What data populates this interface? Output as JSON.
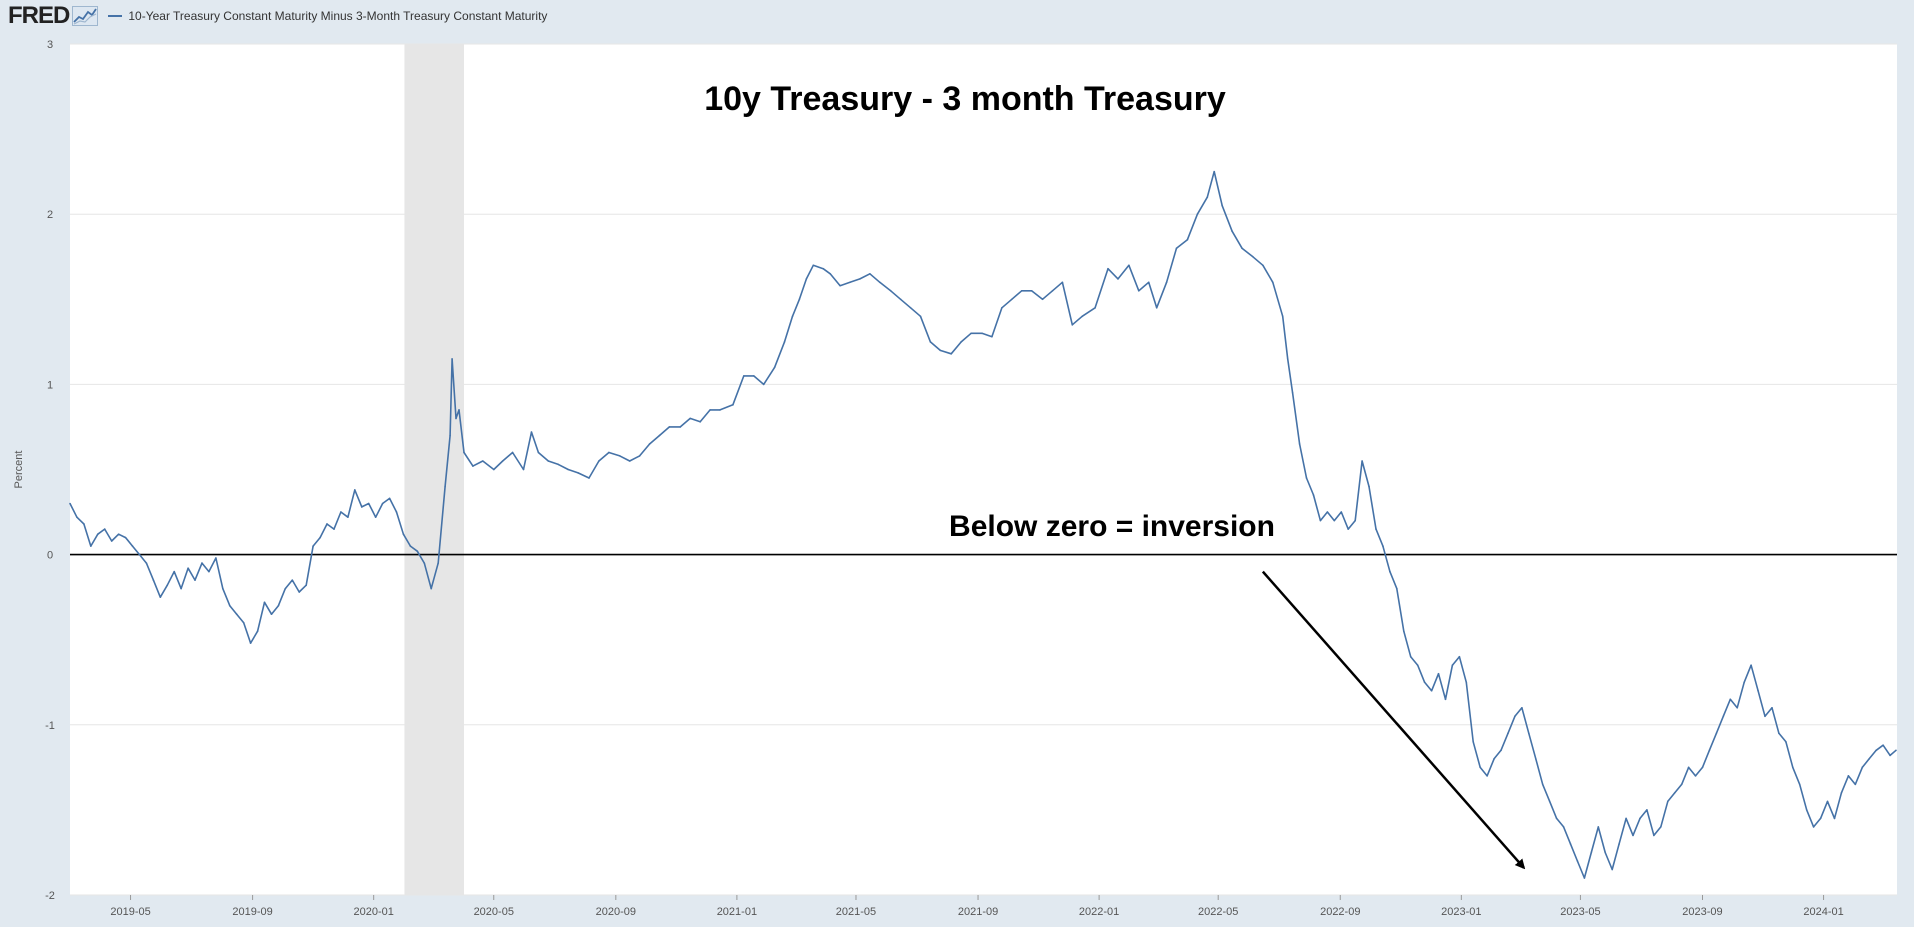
{
  "header": {
    "logo_text": "FRED",
    "logo_icon": "fred-graph-icon",
    "legend_series_label": "10-Year Treasury Constant Maturity Minus 3-Month Treasury Constant Maturity"
  },
  "colors": {
    "series": "#4572a7",
    "page_background": "#e1e9f0",
    "plot_background": "#ffffff",
    "recession_shade": "#e6e6e6",
    "gridline": "#e6e6e6",
    "zero_line": "#000000",
    "annotation": "#000000"
  },
  "chart_data": {
    "type": "line",
    "title": "10y Treasury - 3 month Treasury",
    "ylabel": "Percent",
    "xlabel": "",
    "ylim": [
      -2,
      3
    ],
    "xlim": [
      "2019-03-01",
      "2024-03-15"
    ],
    "y_ticks": [
      3,
      2,
      1,
      0,
      -1,
      -2
    ],
    "y_tick_labels": [
      "3",
      "2",
      "1",
      "0",
      "-1",
      "-2"
    ],
    "x_ticks": [
      "2019-05-01",
      "2019-09-01",
      "2020-01-01",
      "2020-05-01",
      "2020-09-01",
      "2021-01-01",
      "2021-05-01",
      "2021-09-01",
      "2022-01-01",
      "2022-05-01",
      "2022-09-01",
      "2023-01-01",
      "2023-05-01",
      "2023-09-01",
      "2024-01-01"
    ],
    "x_tick_labels": [
      "2019-05",
      "2019-09",
      "2020-01",
      "2020-05",
      "2020-09",
      "2021-01",
      "2021-05",
      "2021-09",
      "2022-01",
      "2022-05",
      "2022-09",
      "2023-01",
      "2023-05",
      "2023-09",
      "2024-01"
    ],
    "grid": true,
    "recession": {
      "start": "2020-02-01",
      "end": "2020-04-01"
    },
    "reference_line": {
      "y": 0
    },
    "annotations": {
      "inversion_label": "Below zero = inversion",
      "arrow": {
        "from": {
          "x": "2022-06-15",
          "y": -0.1
        },
        "to": {
          "x": "2023-03-05",
          "y": -1.84
        }
      }
    },
    "series": [
      {
        "name": "10-Year Treasury Constant Maturity Minus 3-Month Treasury Constant Maturity",
        "points": [
          [
            "2019-03-01",
            0.3
          ],
          [
            "2019-03-08",
            0.22
          ],
          [
            "2019-03-15",
            0.18
          ],
          [
            "2019-03-22",
            0.05
          ],
          [
            "2019-03-29",
            0.12
          ],
          [
            "2019-04-05",
            0.15
          ],
          [
            "2019-04-12",
            0.08
          ],
          [
            "2019-04-19",
            0.12
          ],
          [
            "2019-04-26",
            0.1
          ],
          [
            "2019-05-03",
            0.05
          ],
          [
            "2019-05-10",
            0.0
          ],
          [
            "2019-05-17",
            -0.05
          ],
          [
            "2019-05-24",
            -0.15
          ],
          [
            "2019-05-31",
            -0.25
          ],
          [
            "2019-06-07",
            -0.18
          ],
          [
            "2019-06-14",
            -0.1
          ],
          [
            "2019-06-21",
            -0.2
          ],
          [
            "2019-06-28",
            -0.08
          ],
          [
            "2019-07-05",
            -0.15
          ],
          [
            "2019-07-12",
            -0.05
          ],
          [
            "2019-07-19",
            -0.1
          ],
          [
            "2019-07-26",
            -0.02
          ],
          [
            "2019-08-02",
            -0.2
          ],
          [
            "2019-08-09",
            -0.3
          ],
          [
            "2019-08-16",
            -0.35
          ],
          [
            "2019-08-23",
            -0.4
          ],
          [
            "2019-08-30",
            -0.52
          ],
          [
            "2019-09-06",
            -0.45
          ],
          [
            "2019-09-13",
            -0.28
          ],
          [
            "2019-09-20",
            -0.35
          ],
          [
            "2019-09-27",
            -0.3
          ],
          [
            "2019-10-04",
            -0.2
          ],
          [
            "2019-10-11",
            -0.15
          ],
          [
            "2019-10-18",
            -0.22
          ],
          [
            "2019-10-25",
            -0.18
          ],
          [
            "2019-11-01",
            0.05
          ],
          [
            "2019-11-08",
            0.1
          ],
          [
            "2019-11-15",
            0.18
          ],
          [
            "2019-11-22",
            0.15
          ],
          [
            "2019-11-29",
            0.25
          ],
          [
            "2019-12-06",
            0.22
          ],
          [
            "2019-12-13",
            0.38
          ],
          [
            "2019-12-20",
            0.28
          ],
          [
            "2019-12-27",
            0.3
          ],
          [
            "2020-01-03",
            0.22
          ],
          [
            "2020-01-10",
            0.3
          ],
          [
            "2020-01-17",
            0.33
          ],
          [
            "2020-01-24",
            0.25
          ],
          [
            "2020-01-31",
            0.12
          ],
          [
            "2020-02-07",
            0.05
          ],
          [
            "2020-02-14",
            0.02
          ],
          [
            "2020-02-21",
            -0.05
          ],
          [
            "2020-02-28",
            -0.2
          ],
          [
            "2020-03-06",
            -0.05
          ],
          [
            "2020-03-13",
            0.4
          ],
          [
            "2020-03-18",
            0.7
          ],
          [
            "2020-03-20",
            1.15
          ],
          [
            "2020-03-24",
            0.8
          ],
          [
            "2020-03-27",
            0.85
          ],
          [
            "2020-04-01",
            0.6
          ],
          [
            "2020-04-10",
            0.52
          ],
          [
            "2020-04-20",
            0.55
          ],
          [
            "2020-05-01",
            0.5
          ],
          [
            "2020-05-10",
            0.55
          ],
          [
            "2020-05-20",
            0.6
          ],
          [
            "2020-05-31",
            0.5
          ],
          [
            "2020-06-08",
            0.72
          ],
          [
            "2020-06-15",
            0.6
          ],
          [
            "2020-06-25",
            0.55
          ],
          [
            "2020-07-05",
            0.53
          ],
          [
            "2020-07-15",
            0.5
          ],
          [
            "2020-07-25",
            0.48
          ],
          [
            "2020-08-05",
            0.45
          ],
          [
            "2020-08-15",
            0.55
          ],
          [
            "2020-08-25",
            0.6
          ],
          [
            "2020-09-05",
            0.58
          ],
          [
            "2020-09-15",
            0.55
          ],
          [
            "2020-09-25",
            0.58
          ],
          [
            "2020-10-05",
            0.65
          ],
          [
            "2020-10-15",
            0.7
          ],
          [
            "2020-10-25",
            0.75
          ],
          [
            "2020-11-05",
            0.75
          ],
          [
            "2020-11-15",
            0.8
          ],
          [
            "2020-11-25",
            0.78
          ],
          [
            "2020-12-05",
            0.85
          ],
          [
            "2020-12-15",
            0.85
          ],
          [
            "2020-12-28",
            0.88
          ],
          [
            "2021-01-08",
            1.05
          ],
          [
            "2021-01-18",
            1.05
          ],
          [
            "2021-01-28",
            1.0
          ],
          [
            "2021-02-08",
            1.1
          ],
          [
            "2021-02-18",
            1.25
          ],
          [
            "2021-02-26",
            1.4
          ],
          [
            "2021-03-05",
            1.5
          ],
          [
            "2021-03-12",
            1.62
          ],
          [
            "2021-03-19",
            1.7
          ],
          [
            "2021-03-29",
            1.68
          ],
          [
            "2021-04-05",
            1.65
          ],
          [
            "2021-04-15",
            1.58
          ],
          [
            "2021-04-25",
            1.6
          ],
          [
            "2021-05-05",
            1.62
          ],
          [
            "2021-05-15",
            1.65
          ],
          [
            "2021-05-25",
            1.6
          ],
          [
            "2021-06-05",
            1.55
          ],
          [
            "2021-06-15",
            1.5
          ],
          [
            "2021-06-25",
            1.45
          ],
          [
            "2021-07-05",
            1.4
          ],
          [
            "2021-07-15",
            1.25
          ],
          [
            "2021-07-25",
            1.2
          ],
          [
            "2021-08-05",
            1.18
          ],
          [
            "2021-08-15",
            1.25
          ],
          [
            "2021-08-25",
            1.3
          ],
          [
            "2021-09-05",
            1.3
          ],
          [
            "2021-09-15",
            1.28
          ],
          [
            "2021-09-25",
            1.45
          ],
          [
            "2021-10-05",
            1.5
          ],
          [
            "2021-10-15",
            1.55
          ],
          [
            "2021-10-25",
            1.55
          ],
          [
            "2021-11-05",
            1.5
          ],
          [
            "2021-11-15",
            1.55
          ],
          [
            "2021-11-25",
            1.6
          ],
          [
            "2021-12-05",
            1.35
          ],
          [
            "2021-12-15",
            1.4
          ],
          [
            "2021-12-28",
            1.45
          ],
          [
            "2022-01-10",
            1.68
          ],
          [
            "2022-01-20",
            1.62
          ],
          [
            "2022-01-31",
            1.7
          ],
          [
            "2022-02-10",
            1.55
          ],
          [
            "2022-02-20",
            1.6
          ],
          [
            "2022-02-28",
            1.45
          ],
          [
            "2022-03-10",
            1.6
          ],
          [
            "2022-03-20",
            1.8
          ],
          [
            "2022-03-31",
            1.85
          ],
          [
            "2022-04-10",
            2.0
          ],
          [
            "2022-04-20",
            2.1
          ],
          [
            "2022-04-27",
            2.25
          ],
          [
            "2022-05-05",
            2.05
          ],
          [
            "2022-05-15",
            1.9
          ],
          [
            "2022-05-25",
            1.8
          ],
          [
            "2022-06-05",
            1.75
          ],
          [
            "2022-06-15",
            1.7
          ],
          [
            "2022-06-25",
            1.6
          ],
          [
            "2022-07-05",
            1.4
          ],
          [
            "2022-07-10",
            1.15
          ],
          [
            "2022-07-15",
            0.95
          ],
          [
            "2022-07-22",
            0.65
          ],
          [
            "2022-07-29",
            0.45
          ],
          [
            "2022-08-05",
            0.35
          ],
          [
            "2022-08-12",
            0.2
          ],
          [
            "2022-08-19",
            0.25
          ],
          [
            "2022-08-26",
            0.2
          ],
          [
            "2022-09-02",
            0.25
          ],
          [
            "2022-09-09",
            0.15
          ],
          [
            "2022-09-16",
            0.2
          ],
          [
            "2022-09-23",
            0.55
          ],
          [
            "2022-09-30",
            0.4
          ],
          [
            "2022-10-07",
            0.15
          ],
          [
            "2022-10-14",
            0.05
          ],
          [
            "2022-10-21",
            -0.1
          ],
          [
            "2022-10-28",
            -0.2
          ],
          [
            "2022-11-04",
            -0.45
          ],
          [
            "2022-11-11",
            -0.6
          ],
          [
            "2022-11-18",
            -0.65
          ],
          [
            "2022-11-25",
            -0.75
          ],
          [
            "2022-12-02",
            -0.8
          ],
          [
            "2022-12-09",
            -0.7
          ],
          [
            "2022-12-16",
            -0.85
          ],
          [
            "2022-12-23",
            -0.65
          ],
          [
            "2022-12-30",
            -0.6
          ],
          [
            "2023-01-06",
            -0.75
          ],
          [
            "2023-01-13",
            -1.1
          ],
          [
            "2023-01-20",
            -1.25
          ],
          [
            "2023-01-27",
            -1.3
          ],
          [
            "2023-02-03",
            -1.2
          ],
          [
            "2023-02-10",
            -1.15
          ],
          [
            "2023-02-17",
            -1.05
          ],
          [
            "2023-02-24",
            -0.95
          ],
          [
            "2023-03-03",
            -0.9
          ],
          [
            "2023-03-10",
            -1.05
          ],
          [
            "2023-03-17",
            -1.2
          ],
          [
            "2023-03-24",
            -1.35
          ],
          [
            "2023-03-31",
            -1.45
          ],
          [
            "2023-04-07",
            -1.55
          ],
          [
            "2023-04-14",
            -1.6
          ],
          [
            "2023-04-21",
            -1.7
          ],
          [
            "2023-04-28",
            -1.8
          ],
          [
            "2023-05-05",
            -1.9
          ],
          [
            "2023-05-12",
            -1.75
          ],
          [
            "2023-05-19",
            -1.6
          ],
          [
            "2023-05-26",
            -1.75
          ],
          [
            "2023-06-02",
            -1.85
          ],
          [
            "2023-06-09",
            -1.7
          ],
          [
            "2023-06-16",
            -1.55
          ],
          [
            "2023-06-23",
            -1.65
          ],
          [
            "2023-06-30",
            -1.55
          ],
          [
            "2023-07-07",
            -1.5
          ],
          [
            "2023-07-14",
            -1.65
          ],
          [
            "2023-07-21",
            -1.6
          ],
          [
            "2023-07-28",
            -1.45
          ],
          [
            "2023-08-04",
            -1.4
          ],
          [
            "2023-08-11",
            -1.35
          ],
          [
            "2023-08-18",
            -1.25
          ],
          [
            "2023-08-25",
            -1.3
          ],
          [
            "2023-09-01",
            -1.25
          ],
          [
            "2023-09-08",
            -1.15
          ],
          [
            "2023-09-15",
            -1.05
          ],
          [
            "2023-09-22",
            -0.95
          ],
          [
            "2023-09-29",
            -0.85
          ],
          [
            "2023-10-06",
            -0.9
          ],
          [
            "2023-10-13",
            -0.75
          ],
          [
            "2023-10-20",
            -0.65
          ],
          [
            "2023-10-27",
            -0.8
          ],
          [
            "2023-11-03",
            -0.95
          ],
          [
            "2023-11-10",
            -0.9
          ],
          [
            "2023-11-17",
            -1.05
          ],
          [
            "2023-11-24",
            -1.1
          ],
          [
            "2023-12-01",
            -1.25
          ],
          [
            "2023-12-08",
            -1.35
          ],
          [
            "2023-12-15",
            -1.5
          ],
          [
            "2023-12-22",
            -1.6
          ],
          [
            "2023-12-29",
            -1.55
          ],
          [
            "2024-01-05",
            -1.45
          ],
          [
            "2024-01-12",
            -1.55
          ],
          [
            "2024-01-19",
            -1.4
          ],
          [
            "2024-01-26",
            -1.3
          ],
          [
            "2024-02-02",
            -1.35
          ],
          [
            "2024-02-09",
            -1.25
          ],
          [
            "2024-02-16",
            -1.2
          ],
          [
            "2024-02-23",
            -1.15
          ],
          [
            "2024-03-01",
            -1.12
          ],
          [
            "2024-03-08",
            -1.18
          ],
          [
            "2024-03-14",
            -1.15
          ]
        ]
      }
    ]
  }
}
